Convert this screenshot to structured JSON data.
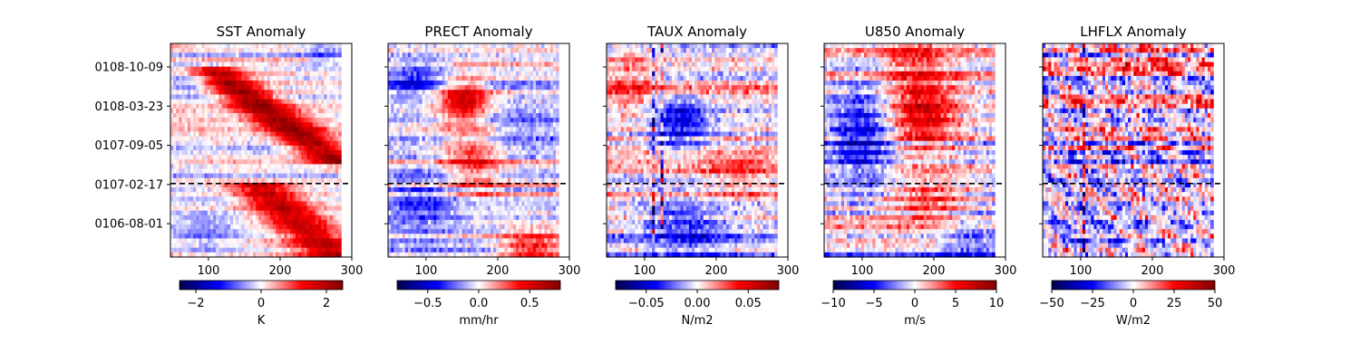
{
  "chart_data": {
    "type": "heatmap",
    "shared_y": {
      "tick_labels": [
        "0108-10-09",
        "0108-03-23",
        "0107-09-05",
        "0107-02-17",
        "0106-08-01"
      ],
      "tick_values": [
        28,
        26,
        24,
        22,
        20
      ],
      "range": [
        18.3,
        29.2
      ],
      "reference_line": 22.05
    },
    "x_axis": {
      "ticks": [
        100,
        200,
        300
      ],
      "range": [
        47,
        300
      ]
    },
    "panels": [
      {
        "title": "SST Anomaly",
        "unit": "K",
        "vmin": -2.5,
        "vmax": 2.5,
        "cbar_ticks": [
          -2,
          0,
          2
        ],
        "cbar_tick_labels": [
          "−2",
          "0",
          "2"
        ],
        "data_extent": [
          47,
          285
        ],
        "pattern": "sst"
      },
      {
        "title": "PRECT Anomaly",
        "unit": "mm/hr",
        "vmin": -0.8,
        "vmax": 0.8,
        "cbar_ticks": [
          -0.5,
          0.0,
          0.5
        ],
        "cbar_tick_labels": [
          "−0.5",
          "0.0",
          "0.5"
        ],
        "data_extent": [
          47,
          285
        ],
        "pattern": "prect"
      },
      {
        "title": "TAUX Anomaly",
        "unit": "N/m2",
        "vmin": -0.08,
        "vmax": 0.08,
        "cbar_ticks": [
          -0.05,
          0.0,
          0.05
        ],
        "cbar_tick_labels": [
          "−0.05",
          "0.00",
          "0.05"
        ],
        "data_extent": [
          47,
          285
        ],
        "pattern": "taux"
      },
      {
        "title": "U850 Anomaly",
        "unit": "m/s",
        "vmin": -10,
        "vmax": 10,
        "cbar_ticks": [
          -10,
          -5,
          0,
          5,
          10
        ],
        "cbar_tick_labels": [
          "−10",
          "−5",
          "0",
          "5",
          "10"
        ],
        "data_extent": [
          47,
          285
        ],
        "pattern": "u850"
      },
      {
        "title": "LHFLX Anomaly",
        "unit": "W/m2",
        "vmin": -50,
        "vmax": 50,
        "cbar_ticks": [
          -50,
          -25,
          0,
          25,
          50
        ],
        "cbar_tick_labels": [
          "−50",
          "−25",
          "0",
          "25",
          "50"
        ],
        "data_extent": [
          47,
          285
        ],
        "pattern": "lhflx"
      }
    ],
    "colormap": "seismic",
    "colors": {
      "low": "#00004c",
      "mid": "#ffffff",
      "high": "#7f0000",
      "reference_line": "#000000"
    }
  }
}
